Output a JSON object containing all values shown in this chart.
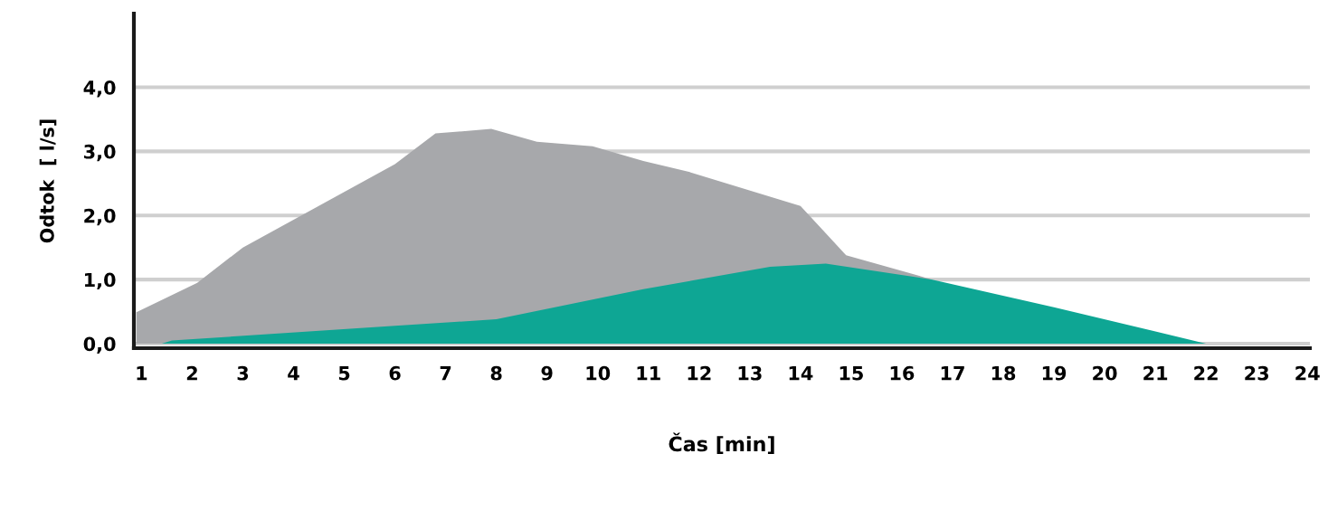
{
  "chart_data": {
    "type": "area",
    "xlabel": "Čas [min]",
    "ylabel": "Odtok  [ l/s]",
    "xlim": [
      0.85,
      24.05
    ],
    "ylim": [
      -0.07,
      5.15
    ],
    "xticks": [
      1,
      2,
      3,
      4,
      5,
      6,
      7,
      8,
      9,
      10,
      11,
      12,
      13,
      14,
      15,
      16,
      17,
      18,
      19,
      20,
      21,
      22,
      23,
      24
    ],
    "yticks": [
      {
        "value": 0,
        "label": "0,0"
      },
      {
        "value": 1,
        "label": "1,0"
      },
      {
        "value": 2,
        "label": "2,0"
      },
      {
        "value": 3,
        "label": "3,0"
      },
      {
        "value": 4,
        "label": "4,0"
      }
    ],
    "grid": "y",
    "legend": false,
    "series": [
      {
        "color": "#a7a8ab",
        "x": [
          0.9,
          2.1,
          3.0,
          6.0,
          6.8,
          7.9,
          8.8,
          9.9,
          10.9,
          11.8,
          14.0,
          14.9,
          16.6
        ],
        "values": [
          0.49,
          0.95,
          1.5,
          2.8,
          3.28,
          3.35,
          3.15,
          3.08,
          2.85,
          2.68,
          2.15,
          1.38,
          1.0
        ]
      },
      {
        "color": "#0ea694",
        "x": [
          1.4,
          1.6,
          6.0,
          8.0,
          10.9,
          13.4,
          14.5,
          16.6,
          19.0,
          22.0
        ],
        "values": [
          0,
          0.05,
          0.28,
          0.38,
          0.85,
          1.2,
          1.25,
          1.0,
          0.57,
          0
        ]
      }
    ]
  }
}
